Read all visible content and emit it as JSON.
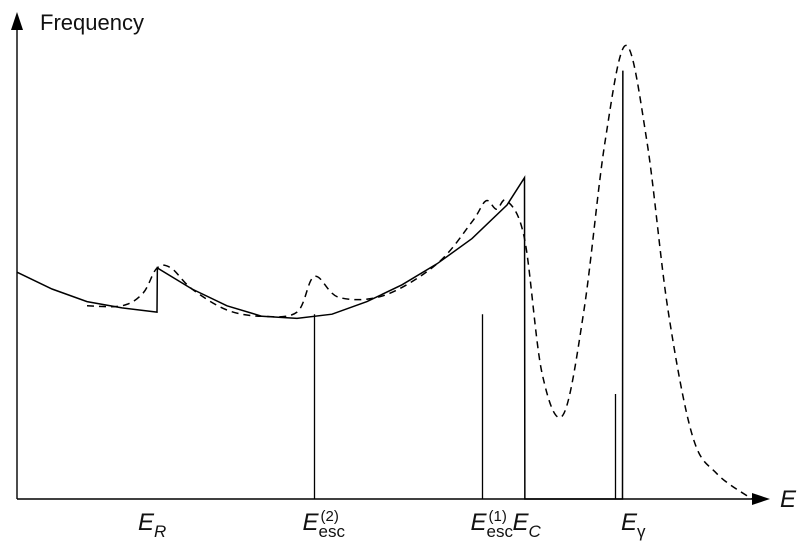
{
  "chart_data": {
    "type": "line",
    "title": "",
    "ylabel": "Frequency",
    "xlabel": "E",
    "axis_ticks_shown": false,
    "grid": false,
    "legend": "none",
    "colors": {
      "lines": "#000000",
      "background": "#ffffff"
    },
    "series": [
      {
        "style": "solid",
        "points": [
          [
            0,
            5.4
          ],
          [
            1,
            5.0
          ],
          [
            2,
            4.7
          ],
          [
            3,
            4.55
          ],
          [
            4.0,
            4.45
          ],
          [
            4.01,
            5.5
          ],
          [
            5,
            5.0
          ],
          [
            6,
            4.6
          ],
          [
            7,
            4.35
          ],
          [
            8,
            4.3
          ],
          [
            9,
            4.4
          ],
          [
            10,
            4.7
          ],
          [
            11,
            5.1
          ],
          [
            12,
            5.6
          ],
          [
            13,
            6.2
          ],
          [
            14,
            7.0
          ],
          [
            14.5,
            7.65
          ],
          [
            14.51,
            0
          ],
          [
            17.3,
            0
          ],
          [
            17.31,
            10.2
          ]
        ]
      },
      {
        "style": "dashed",
        "points": [
          [
            2.0,
            4.6
          ],
          [
            3.0,
            4.6
          ],
          [
            3.6,
            4.9
          ],
          [
            4.0,
            5.5
          ],
          [
            4.4,
            5.5
          ],
          [
            5.0,
            5.0
          ],
          [
            6.0,
            4.5
          ],
          [
            7.0,
            4.35
          ],
          [
            8.0,
            4.45
          ],
          [
            8.5,
            5.3
          ],
          [
            9.2,
            4.8
          ],
          [
            10.5,
            4.85
          ],
          [
            12.0,
            5.6
          ],
          [
            13.0,
            6.6
          ],
          [
            13.4,
            7.1
          ],
          [
            13.7,
            6.9
          ],
          [
            14.0,
            7.1
          ],
          [
            14.5,
            6.2
          ],
          [
            15.0,
            3.0
          ],
          [
            15.6,
            2.0
          ],
          [
            16.2,
            4.5
          ],
          [
            16.8,
            8.5
          ],
          [
            17.4,
            10.8
          ],
          [
            18.0,
            8.5
          ],
          [
            18.6,
            4.5
          ],
          [
            19.3,
            1.5
          ],
          [
            20.0,
            0.6
          ],
          [
            21.0,
            0
          ]
        ]
      }
    ],
    "markers": [
      {
        "label": "E_esc^(2)",
        "x": 8.5,
        "height": 4.4
      },
      {
        "label": "E_esc^(1)",
        "x": 13.3,
        "height": 4.4
      },
      {
        "label": "",
        "x": 17.1,
        "height": 2.5
      }
    ],
    "tick_labels": [
      {
        "main": "E",
        "sub": "R",
        "sup": "",
        "x": 3.8
      },
      {
        "main": "E",
        "sub": "esc",
        "sup": "(2)",
        "x": 8.5
      },
      {
        "main": "E",
        "sub": "esc",
        "sup": "(1)",
        "x": 13.3
      },
      {
        "main": "E",
        "sub": "C",
        "sup": "",
        "x": 14.5
      },
      {
        "main": "E",
        "sub": "γ",
        "sup": "",
        "x": 17.6
      }
    ]
  }
}
